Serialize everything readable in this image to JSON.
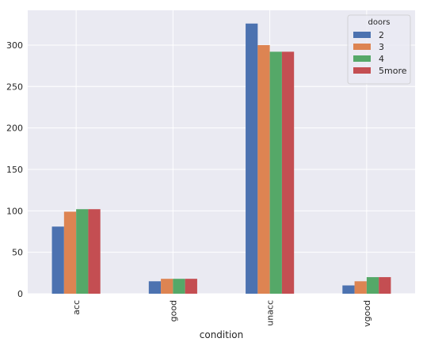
{
  "chart_data": {
    "type": "bar",
    "categories": [
      "acc",
      "good",
      "unacc",
      "vgood"
    ],
    "series": [
      {
        "name": "2",
        "values": [
          81,
          15,
          326,
          10
        ],
        "color": "#4c72b0"
      },
      {
        "name": "3",
        "values": [
          99,
          18,
          300,
          15
        ],
        "color": "#dd8452"
      },
      {
        "name": "4",
        "values": [
          102,
          18,
          292,
          20
        ],
        "color": "#55a868"
      },
      {
        "name": "5more",
        "values": [
          102,
          18,
          292,
          20
        ],
        "color": "#c44e52"
      }
    ],
    "xlabel": "condition",
    "ylabel": "",
    "ylim": [
      0,
      342
    ],
    "yticks": [
      0,
      50,
      100,
      150,
      200,
      250,
      300
    ],
    "legend_title": "doors",
    "legend_position": "top-right",
    "grid": true,
    "plot_background": "#eaeaf2",
    "grid_color": "#ffffff"
  }
}
